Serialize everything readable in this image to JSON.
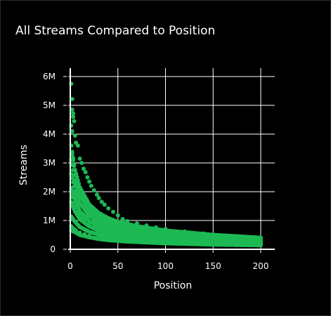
{
  "chart_data": {
    "type": "scatter",
    "title": "All Streams Compared to Position",
    "xlabel": "Position",
    "ylabel": "Streams",
    "xlim": [
      -2,
      202
    ],
    "ylim": [
      0,
      6000000
    ],
    "x_ticks": [
      0,
      50,
      100,
      150,
      200
    ],
    "x_tick_labels": [
      "0",
      "50",
      "100",
      "150",
      "200"
    ],
    "y_ticks": [
      0,
      1000000,
      2000000,
      3000000,
      4000000,
      5000000,
      6000000
    ],
    "y_tick_labels": [
      "0",
      "1M",
      "2M",
      "3M",
      "4M",
      "5M",
      "6M"
    ],
    "grid": true,
    "marker_color": "#1DB954",
    "series": [
      {
        "values_description_note": "",
        "points": [
          [
            1,
            5750000
          ],
          [
            2,
            5220000
          ],
          [
            2,
            4850000
          ],
          [
            3,
            4720000
          ],
          [
            3,
            4600000
          ],
          [
            4,
            4450000
          ],
          [
            1,
            4300000
          ],
          [
            2,
            4100000
          ],
          [
            5,
            3950000
          ],
          [
            6,
            3700000
          ],
          [
            8,
            3600000
          ],
          [
            10,
            3150000
          ],
          [
            12,
            3000000
          ],
          [
            14,
            2800000
          ],
          [
            16,
            2680000
          ],
          [
            18,
            2500000
          ],
          [
            20,
            2350000
          ],
          [
            22,
            2200000
          ],
          [
            25,
            2050000
          ],
          [
            28,
            1900000
          ],
          [
            30,
            1780000
          ],
          [
            33,
            1650000
          ],
          [
            36,
            1550000
          ],
          [
            40,
            1420000
          ],
          [
            45,
            1300000
          ],
          [
            50,
            1180000
          ],
          [
            55,
            1050000
          ],
          [
            60,
            980000
          ],
          [
            70,
            900000
          ],
          [
            80,
            830000
          ],
          [
            90,
            760000
          ],
          [
            100,
            700000
          ],
          [
            120,
            620000
          ],
          [
            140,
            550000
          ],
          [
            160,
            480000
          ],
          [
            180,
            420000
          ],
          [
            200,
            380000
          ],
          [
            1,
            3600000
          ],
          [
            2,
            3300000
          ],
          [
            3,
            3100000
          ],
          [
            4,
            2900000
          ],
          [
            5,
            2750000
          ],
          [
            6,
            2600000
          ],
          [
            7,
            2450000
          ],
          [
            8,
            2300000
          ],
          [
            10,
            2150000
          ],
          [
            12,
            2000000
          ],
          [
            14,
            1850000
          ],
          [
            16,
            1750000
          ],
          [
            18,
            1650000
          ],
          [
            20,
            1550000
          ],
          [
            24,
            1420000
          ],
          [
            28,
            1320000
          ],
          [
            32,
            1230000
          ],
          [
            36,
            1150000
          ],
          [
            40,
            1080000
          ],
          [
            45,
            1000000
          ],
          [
            50,
            950000
          ],
          [
            60,
            870000
          ],
          [
            70,
            800000
          ],
          [
            80,
            740000
          ],
          [
            100,
            650000
          ],
          [
            120,
            580000
          ],
          [
            150,
            500000
          ],
          [
            175,
            440000
          ],
          [
            200,
            400000
          ],
          [
            1,
            2000000
          ],
          [
            2,
            1800000
          ],
          [
            3,
            1600000
          ],
          [
            5,
            1450000
          ],
          [
            7,
            1300000
          ],
          [
            9,
            1200000
          ],
          [
            12,
            1100000
          ],
          [
            15,
            1000000
          ],
          [
            20,
            900000
          ],
          [
            25,
            820000
          ],
          [
            30,
            760000
          ],
          [
            40,
            680000
          ],
          [
            50,
            600000
          ],
          [
            60,
            550000
          ],
          [
            75,
            480000
          ],
          [
            90,
            430000
          ],
          [
            110,
            380000
          ],
          [
            130,
            340000
          ],
          [
            150,
            300000
          ],
          [
            175,
            270000
          ],
          [
            200,
            240000
          ],
          [
            1,
            800000
          ],
          [
            2,
            760000
          ],
          [
            4,
            700000
          ],
          [
            6,
            650000
          ],
          [
            10,
            580000
          ],
          [
            15,
            520000
          ],
          [
            20,
            470000
          ],
          [
            30,
            400000
          ],
          [
            40,
            350000
          ],
          [
            50,
            310000
          ],
          [
            60,
            280000
          ],
          [
            80,
            240000
          ],
          [
            100,
            210000
          ],
          [
            125,
            185000
          ],
          [
            150,
            165000
          ],
          [
            175,
            150000
          ],
          [
            200,
            140000
          ]
        ]
      }
    ]
  }
}
